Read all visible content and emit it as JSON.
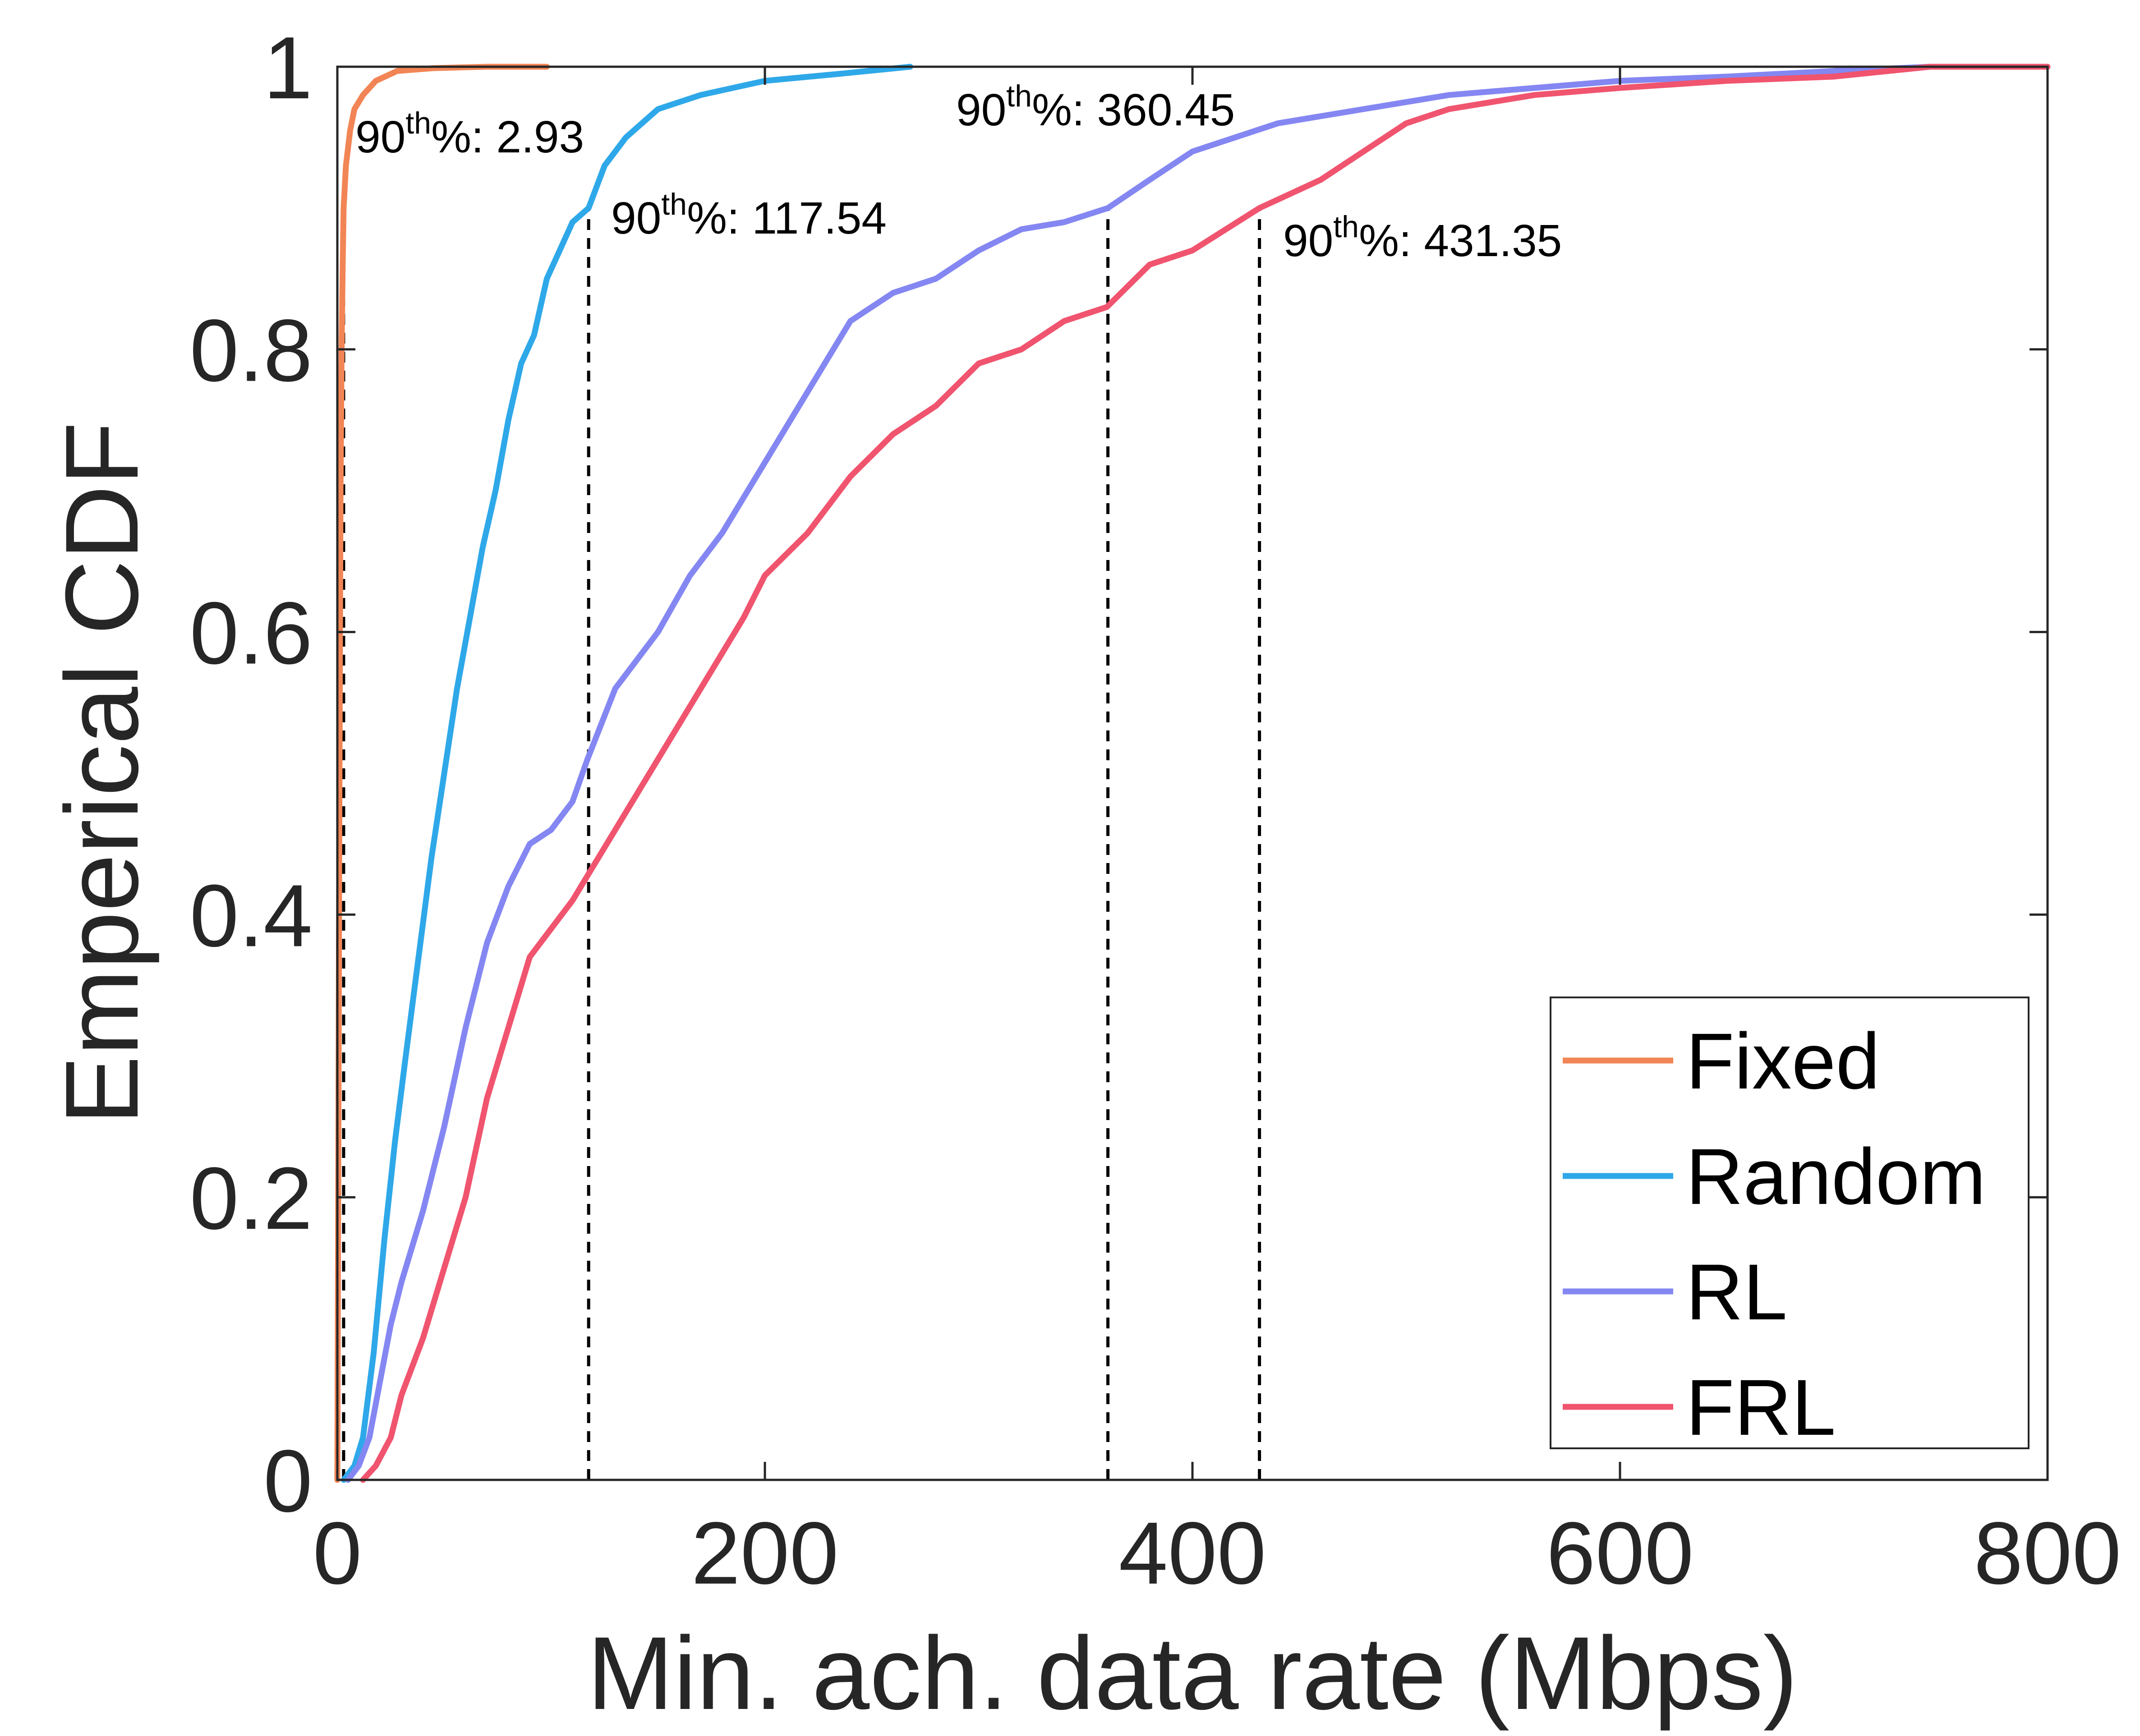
{
  "chart_data": {
    "type": "line",
    "title": "",
    "xlabel": "Min. ach. data rate (Mbps)",
    "ylabel": "Emperical CDF",
    "xlim": [
      0,
      800
    ],
    "ylim": [
      0,
      1
    ],
    "xticks": [
      0,
      200,
      400,
      600,
      800
    ],
    "xtick_labels": [
      "0",
      "200",
      "400",
      "600",
      "800"
    ],
    "yticks": [
      0,
      0.2,
      0.4,
      0.6,
      0.8,
      1
    ],
    "ytick_labels": [
      "0",
      "0.2",
      "0.4",
      "0.6",
      "0.8",
      "1"
    ],
    "grid": false,
    "legend_position": "bottom-right",
    "series": [
      {
        "name": "Fixed",
        "color": "#F28555",
        "x": [
          0,
          0.5,
          1,
          1.5,
          2,
          2.5,
          2.93,
          4,
          6,
          8,
          12,
          18,
          28,
          45,
          70,
          98
        ],
        "y": [
          0,
          0.25,
          0.5,
          0.7,
          0.8,
          0.86,
          0.9,
          0.93,
          0.955,
          0.97,
          0.98,
          0.99,
          0.997,
          0.999,
          1.0,
          1.0
        ]
      },
      {
        "name": "Random",
        "color": "#2EA8E9",
        "x": [
          3,
          8,
          12,
          17,
          22,
          27,
          32,
          38,
          44,
          50,
          56,
          62,
          68,
          74,
          80,
          86,
          92,
          98,
          104,
          110,
          117.54,
          125,
          135,
          150,
          170,
          200,
          235,
          268
        ],
        "y": [
          0,
          0.01,
          0.03,
          0.09,
          0.17,
          0.24,
          0.3,
          0.37,
          0.44,
          0.5,
          0.56,
          0.61,
          0.66,
          0.7,
          0.75,
          0.79,
          0.81,
          0.85,
          0.87,
          0.89,
          0.9,
          0.93,
          0.95,
          0.97,
          0.98,
          0.99,
          0.995,
          1.0
        ]
      },
      {
        "name": "RL",
        "color": "#8487F2",
        "x": [
          5,
          10,
          15,
          20,
          25,
          30,
          40,
          50,
          60,
          70,
          80,
          90,
          100,
          110,
          117,
          130,
          150,
          165,
          180,
          200,
          220,
          240,
          260,
          280,
          300,
          320,
          340,
          360.45,
          380,
          400,
          440,
          480,
          520,
          560,
          600,
          650,
          700,
          745,
          800
        ],
        "y": [
          0,
          0.01,
          0.03,
          0.07,
          0.11,
          0.14,
          0.19,
          0.25,
          0.32,
          0.38,
          0.42,
          0.45,
          0.46,
          0.48,
          0.51,
          0.56,
          0.6,
          0.64,
          0.67,
          0.72,
          0.77,
          0.82,
          0.84,
          0.85,
          0.87,
          0.885,
          0.89,
          0.9,
          0.92,
          0.94,
          0.96,
          0.97,
          0.98,
          0.985,
          0.99,
          0.993,
          0.997,
          1.0,
          1.0
        ]
      },
      {
        "name": "FRL",
        "color": "#F0546E",
        "x": [
          12,
          18,
          25,
          30,
          40,
          50,
          60,
          70,
          80,
          90,
          100,
          110,
          118,
          130,
          150,
          170,
          190,
          200,
          220,
          240,
          260,
          280,
          300,
          320,
          340,
          360,
          380,
          400,
          431.35,
          460,
          480,
          500,
          520,
          560,
          600,
          650,
          700,
          745,
          800
        ],
        "y": [
          0,
          0.01,
          0.03,
          0.06,
          0.1,
          0.15,
          0.2,
          0.27,
          0.32,
          0.37,
          0.39,
          0.41,
          0.43,
          0.46,
          0.51,
          0.56,
          0.61,
          0.64,
          0.67,
          0.71,
          0.74,
          0.76,
          0.79,
          0.8,
          0.82,
          0.83,
          0.86,
          0.87,
          0.9,
          0.92,
          0.94,
          0.96,
          0.97,
          0.98,
          0.985,
          0.99,
          0.993,
          1.0,
          1.0
        ]
      }
    ],
    "percentile_lines": [
      {
        "series": "Fixed",
        "x": 2.93,
        "value_text": "2.93"
      },
      {
        "series": "Random",
        "x": 117.54,
        "value_text": "117.54"
      },
      {
        "series": "RL",
        "x": 360.45,
        "value_text": "360.45"
      },
      {
        "series": "FRL",
        "x": 431.35,
        "value_text": "431.35"
      }
    ],
    "percentile_label_base": "90",
    "percentile_label_sup": "th",
    "percentile_label_suffix": "%: "
  }
}
